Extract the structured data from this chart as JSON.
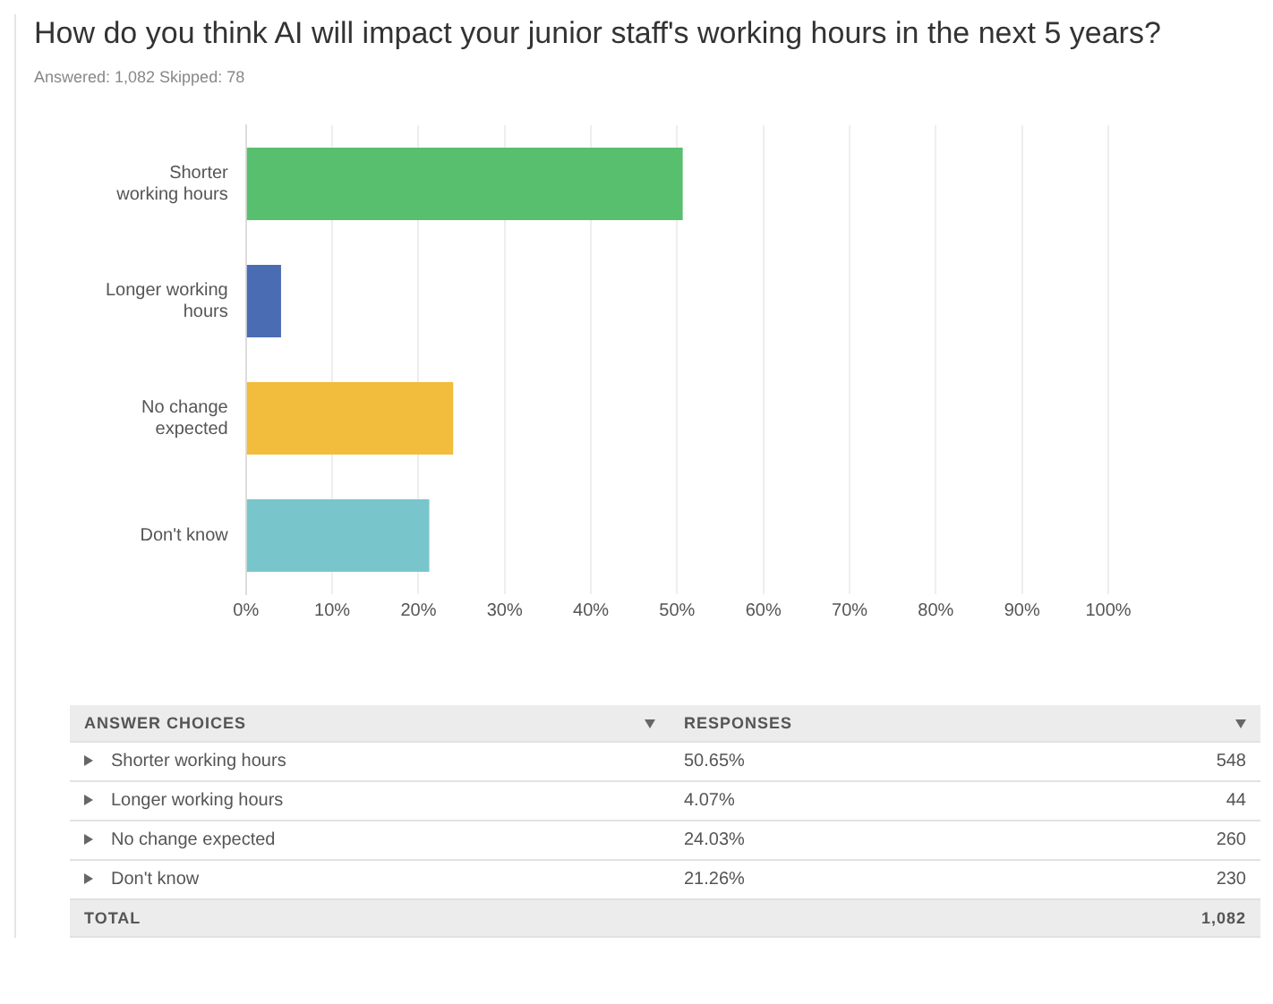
{
  "chart_data": {
    "type": "bar",
    "orientation": "horizontal",
    "title": "How do you think AI will impact your junior staff's working hours in the next 5 years?",
    "categories": [
      "Shorter working hours",
      "Longer working hours",
      "No change expected",
      "Don't know"
    ],
    "values": [
      50.65,
      4.07,
      24.03,
      21.26
    ],
    "colors": [
      "#57bf6e",
      "#4a6cb3",
      "#f2bd3c",
      "#78c6cc"
    ],
    "xlim": [
      0,
      100
    ],
    "xticks": [
      {
        "value": 0,
        "label": "0%"
      },
      {
        "value": 10,
        "label": "10%"
      },
      {
        "value": 20,
        "label": "20%"
      },
      {
        "value": 30,
        "label": "30%"
      },
      {
        "value": 40,
        "label": "40%"
      },
      {
        "value": 50,
        "label": "50%"
      },
      {
        "value": 60,
        "label": "60%"
      },
      {
        "value": 70,
        "label": "70%"
      },
      {
        "value": 80,
        "label": "80%"
      },
      {
        "value": 90,
        "label": "90%"
      },
      {
        "value": 100,
        "label": "100%"
      }
    ],
    "grid": "x",
    "annotations": [
      "Answered: 1,082    Skipped: 78",
      "ANSWER CHOICES",
      "RESPONSES",
      "548",
      "44",
      "260",
      "230",
      "TOTAL",
      "1,082",
      "50.65%",
      "4.07%",
      "24.03%",
      "21.26%"
    ]
  }
}
